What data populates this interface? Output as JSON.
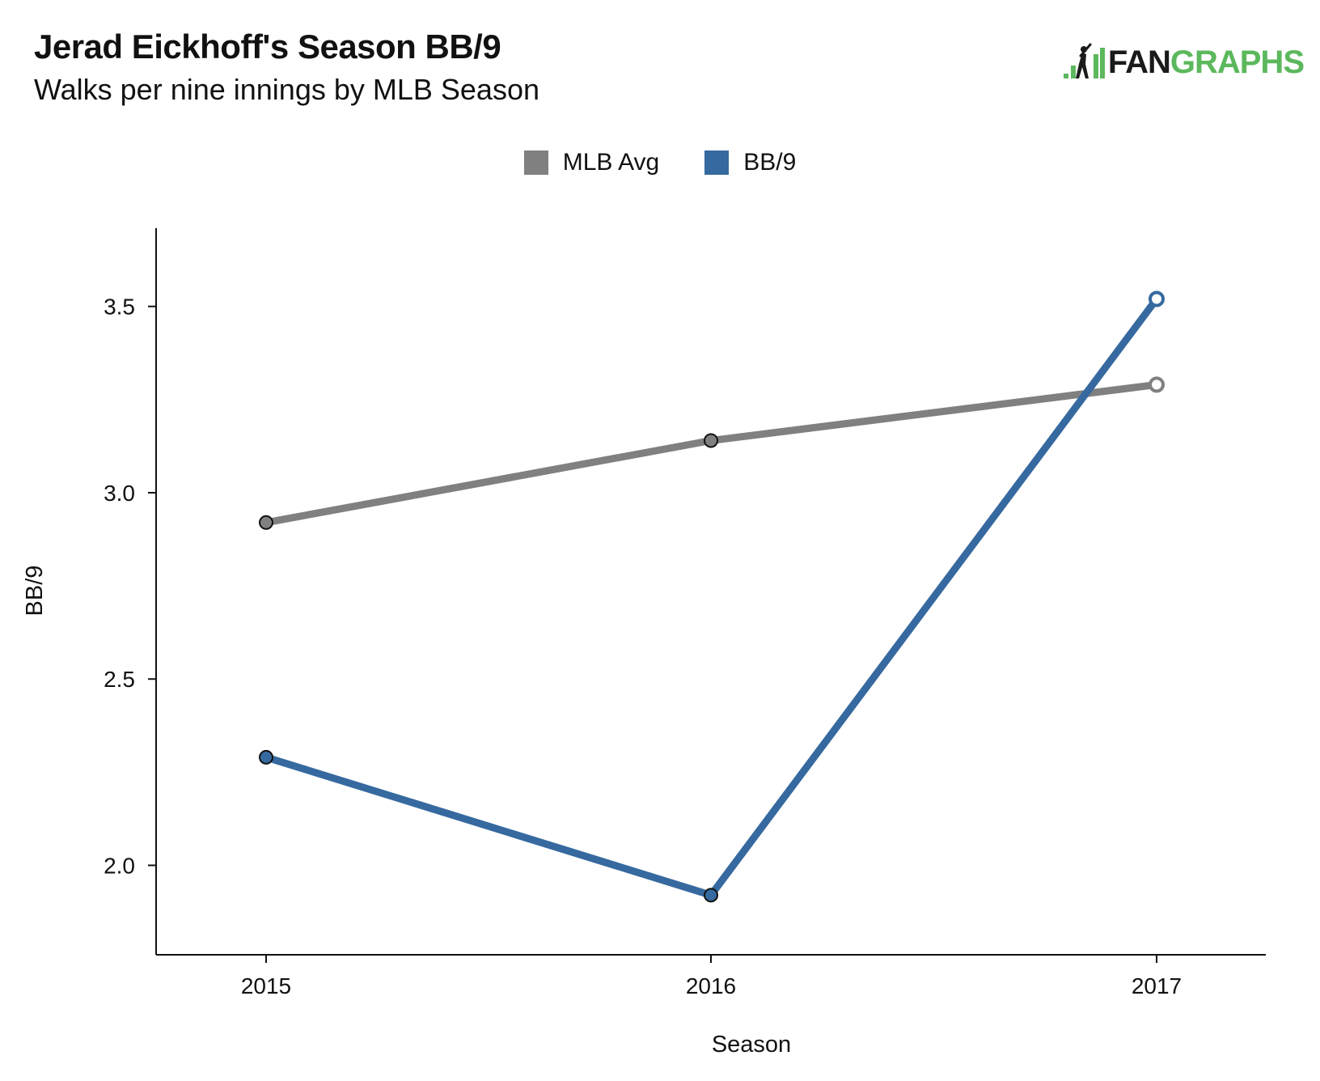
{
  "header": {
    "title": "Jerad Eickhoff's Season BB/9",
    "subtitle": "Walks per nine innings by MLB Season"
  },
  "logo": {
    "icon": "fangraphs-batter-icon",
    "text_dark": "FAN",
    "text_green": "GRAPHS",
    "color_dark": "#1a1a1a",
    "color_green": "#5cb85c"
  },
  "chart_data": {
    "type": "line",
    "title": "Jerad Eickhoff's Season BB/9",
    "subtitle": "Walks per nine innings by MLB Season",
    "xlabel": "Season",
    "ylabel": "BB/9",
    "x": [
      "2015",
      "2016",
      "2017"
    ],
    "ylim": [
      1.76,
      3.71
    ],
    "yticks": [
      "2.0",
      "2.5",
      "3.0",
      "3.5"
    ],
    "grid": false,
    "legend_position": "top-center",
    "series": [
      {
        "name": "MLB Avg",
        "color": "#808080",
        "values": [
          2.92,
          3.14,
          3.29
        ]
      },
      {
        "name": "BB/9",
        "color": "#36699f",
        "values": [
          2.29,
          1.92,
          3.52
        ]
      }
    ]
  }
}
